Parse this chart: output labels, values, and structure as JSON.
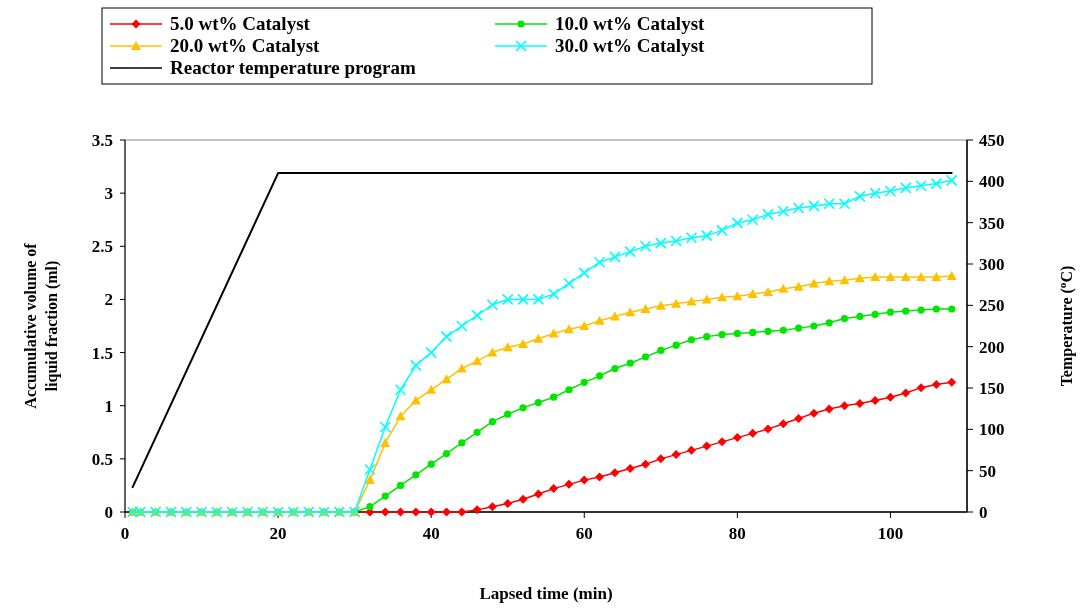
{
  "chart_data": {
    "type": "line",
    "xlabel": "Lapsed time (min)",
    "ylabel": "Accumulative volume of liquid fraction (ml)",
    "y2label": "Temperature ($^{o}$C)",
    "x": [
      1,
      2,
      4,
      6,
      8,
      10,
      12,
      14,
      16,
      18,
      20,
      22,
      24,
      26,
      28,
      30,
      32,
      34,
      36,
      38,
      40,
      42,
      44,
      46,
      48,
      50,
      52,
      54,
      56,
      58,
      60,
      62,
      64,
      66,
      68,
      70,
      72,
      74,
      76,
      78,
      80,
      82,
      84,
      86,
      88,
      90,
      92,
      94,
      96,
      98,
      100,
      102,
      104,
      106,
      108
    ],
    "series": [
      {
        "name": "5.0 wt%  Catalyst",
        "color": "#ff0000",
        "marker": "diamond",
        "values": [
          null,
          null,
          null,
          null,
          null,
          null,
          null,
          null,
          null,
          null,
          null,
          null,
          null,
          null,
          null,
          0,
          0,
          0,
          0,
          0,
          0,
          0,
          0,
          0.02,
          0.05,
          0.08,
          0.12,
          0.17,
          0.22,
          0.26,
          0.3,
          0.33,
          0.37,
          0.41,
          0.45,
          0.5,
          0.54,
          0.58,
          0.62,
          0.66,
          0.7,
          0.74,
          0.78,
          0.83,
          0.88,
          0.93,
          0.97,
          1.0,
          1.02,
          1.05,
          1.08,
          1.12,
          1.17,
          1.2,
          1.22
        ]
      },
      {
        "name": "10.0 wt%  Catalyst",
        "color": "#00e600",
        "marker": "circle",
        "values": [
          0,
          0,
          0,
          0,
          0,
          0,
          0,
          0,
          0,
          0,
          0,
          0,
          0,
          0,
          0,
          0,
          0.05,
          0.15,
          0.25,
          0.35,
          0.45,
          0.55,
          0.65,
          0.75,
          0.85,
          0.92,
          0.98,
          1.03,
          1.08,
          1.15,
          1.22,
          1.28,
          1.35,
          1.4,
          1.46,
          1.52,
          1.57,
          1.62,
          1.65,
          1.67,
          1.68,
          1.69,
          1.7,
          1.71,
          1.73,
          1.75,
          1.78,
          1.82,
          1.84,
          1.86,
          1.88,
          1.89,
          1.9,
          1.91,
          1.91
        ]
      },
      {
        "name": "20.0 wt%  Catalyst",
        "color": "#ffc000",
        "marker": "triangle",
        "values": [
          0,
          0,
          0,
          0,
          0,
          0,
          0,
          0,
          0,
          0,
          0,
          0,
          0,
          0,
          0,
          0,
          0.3,
          0.65,
          0.9,
          1.05,
          1.15,
          1.25,
          1.35,
          1.42,
          1.5,
          1.55,
          1.58,
          1.63,
          1.68,
          1.72,
          1.75,
          1.8,
          1.84,
          1.88,
          1.91,
          1.94,
          1.96,
          1.98,
          2.0,
          2.02,
          2.03,
          2.05,
          2.07,
          2.1,
          2.12,
          2.15,
          2.17,
          2.18,
          2.2,
          2.21,
          2.21,
          2.21,
          2.21,
          2.21,
          2.22
        ]
      },
      {
        "name": "30.0 wt%  Catalyst",
        "color": "#00ffff",
        "marker": "cross",
        "values": [
          0,
          0,
          0,
          0,
          0,
          0,
          0,
          0,
          0,
          0,
          0,
          0,
          0,
          0,
          0,
          0,
          0.4,
          0.8,
          1.15,
          1.38,
          1.5,
          1.65,
          1.75,
          1.85,
          1.95,
          2.0,
          2.0,
          2.0,
          2.05,
          2.15,
          2.25,
          2.35,
          2.4,
          2.45,
          2.5,
          2.53,
          2.55,
          2.58,
          2.6,
          2.65,
          2.72,
          2.75,
          2.8,
          2.83,
          2.86,
          2.88,
          2.9,
          2.9,
          2.97,
          3.0,
          3.02,
          3.05,
          3.07,
          3.09,
          3.12
        ]
      },
      {
        "name": "Reactor temperature program",
        "color": "#000000",
        "marker": "none",
        "axis": "y2",
        "x": [
          1,
          20,
          108
        ],
        "values": [
          30,
          410,
          410
        ]
      }
    ],
    "xlim": [
      0,
      110
    ],
    "xticks": [
      0,
      20,
      40,
      60,
      80,
      100
    ],
    "ylim": [
      0,
      3.5
    ],
    "yticks": [
      0,
      {
        "value": 0.5,
        "label": "0.5"
      },
      1,
      {
        "value": 1.5,
        "label": "1.5"
      },
      2,
      {
        "value": 2.5,
        "label": "2.5"
      },
      3,
      {
        "value": 3.5,
        "label": "3.5"
      }
    ],
    "y2lim": [
      0,
      450
    ],
    "y2ticks": [
      0,
      50,
      100,
      150,
      200,
      250,
      300,
      350,
      400,
      450
    ],
    "legend": "top",
    "grid": false
  }
}
